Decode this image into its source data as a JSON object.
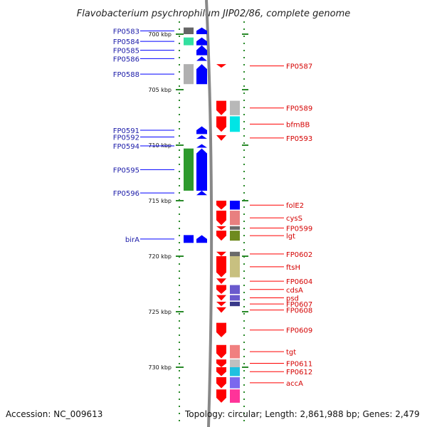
{
  "title": "Flavobacterium psychrophilum JIP02/86, complete genome",
  "footer": {
    "accession": "Accession: NC_009613",
    "topology": "Topology: circular; Length: 2,861,988 bp; Genes: 2,479"
  },
  "scale": {
    "unit": "kbp",
    "ticks": [
      {
        "label": "700 kbp",
        "kbp": 700
      },
      {
        "label": "705 kbp",
        "kbp": 705
      },
      {
        "label": "710 kbp",
        "kbp": 710
      },
      {
        "label": "715 kbp",
        "kbp": 715
      },
      {
        "label": "720 kbp",
        "kbp": 720
      },
      {
        "label": "725 kbp",
        "kbp": 725
      },
      {
        "label": "730 kbp",
        "kbp": 730
      }
    ]
  },
  "colors": {
    "forward_strand": "#0000ff",
    "reverse_strand": "#ff0000",
    "left_label": "#1a1aa8",
    "right_label": "#d40000",
    "dotted_track": "#2a8a2a",
    "backbone": "#888888"
  },
  "left_genes": [
    {
      "name": "FP0583",
      "start": 699.4,
      "end": 700.0,
      "cog": "#666666"
    },
    {
      "name": "FP0584",
      "start": 700.3,
      "end": 701.0,
      "cog": "#33e0a0"
    },
    {
      "name": "FP0585",
      "start": 701.0,
      "end": 701.9,
      "cog": ""
    },
    {
      "name": "FP0586",
      "start": 702.0,
      "end": 702.4,
      "cog": ""
    },
    {
      "name": "FP0588",
      "start": 702.7,
      "end": 704.5,
      "cog": "#b0b0b0"
    },
    {
      "name": "FP0591",
      "start": 708.3,
      "end": 709.0,
      "cog": ""
    },
    {
      "name": "FP0592",
      "start": 709.1,
      "end": 709.4,
      "cog": ""
    },
    {
      "name": "FP0594",
      "start": 709.9,
      "end": 710.1,
      "cog": ""
    },
    {
      "name": "FP0595",
      "start": 710.3,
      "end": 714.1,
      "cog": "#2e9a2e"
    },
    {
      "name": "FP0596",
      "start": 714.1,
      "end": 714.5,
      "cog": ""
    },
    {
      "name": "birA",
      "start": 718.1,
      "end": 718.8,
      "cog": "#0000ff"
    }
  ],
  "right_genes": [
    {
      "name": "FP0587",
      "start": 702.7,
      "end": 703.0,
      "cog": ""
    },
    {
      "name": "FP0589",
      "start": 706.0,
      "end": 707.3,
      "cog": "#b8b8b8"
    },
    {
      "name": "bfmBB",
      "start": 707.4,
      "end": 708.8,
      "cog": "#00e5e5"
    },
    {
      "name": "FP0593",
      "start": 709.1,
      "end": 709.6,
      "cog": ""
    },
    {
      "name": "folE2",
      "start": 715.0,
      "end": 715.8,
      "cog": "#0000ff"
    },
    {
      "name": "cysS",
      "start": 715.9,
      "end": 717.2,
      "cog": "#e88080"
    },
    {
      "name": "FP0599",
      "start": 717.3,
      "end": 717.6,
      "cog": "#6a6a6a"
    },
    {
      "name": "lgt",
      "start": 717.7,
      "end": 718.6,
      "cog": "#6f8a1f"
    },
    {
      "name": "FP0602",
      "start": 719.6,
      "end": 720.0,
      "cog": "#6a6a6a"
    },
    {
      "name": "ftsH",
      "start": 720.0,
      "end": 721.9,
      "cog": "#c8c080"
    },
    {
      "name": "FP0604",
      "start": 722.0,
      "end": 722.5,
      "cog": ""
    },
    {
      "name": "cdsA",
      "start": 722.6,
      "end": 723.4,
      "cog": "#6a5acd"
    },
    {
      "name": "psd",
      "start": 723.5,
      "end": 724.0,
      "cog": "#6a5acd"
    },
    {
      "name": "FP0607",
      "start": 724.1,
      "end": 724.5,
      "cog": "#3a3a8a"
    },
    {
      "name": "FP0608",
      "start": 724.6,
      "end": 725.1,
      "cog": ""
    },
    {
      "name": "FP0609",
      "start": 726.0,
      "end": 727.3,
      "cog": ""
    },
    {
      "name": "tgt",
      "start": 728.0,
      "end": 729.2,
      "cog": "#f08080"
    },
    {
      "name": "FP0611",
      "start": 729.3,
      "end": 730.0,
      "cog": "#c0c0c0"
    },
    {
      "name": "FP0612",
      "start": 730.0,
      "end": 730.8,
      "cog": "#20c0e0"
    },
    {
      "name": "accA",
      "start": 730.9,
      "end": 731.9,
      "cog": "#7b68ee"
    },
    {
      "name": "",
      "start": 732.0,
      "end": 733.2,
      "cog": "#ff3399"
    }
  ]
}
